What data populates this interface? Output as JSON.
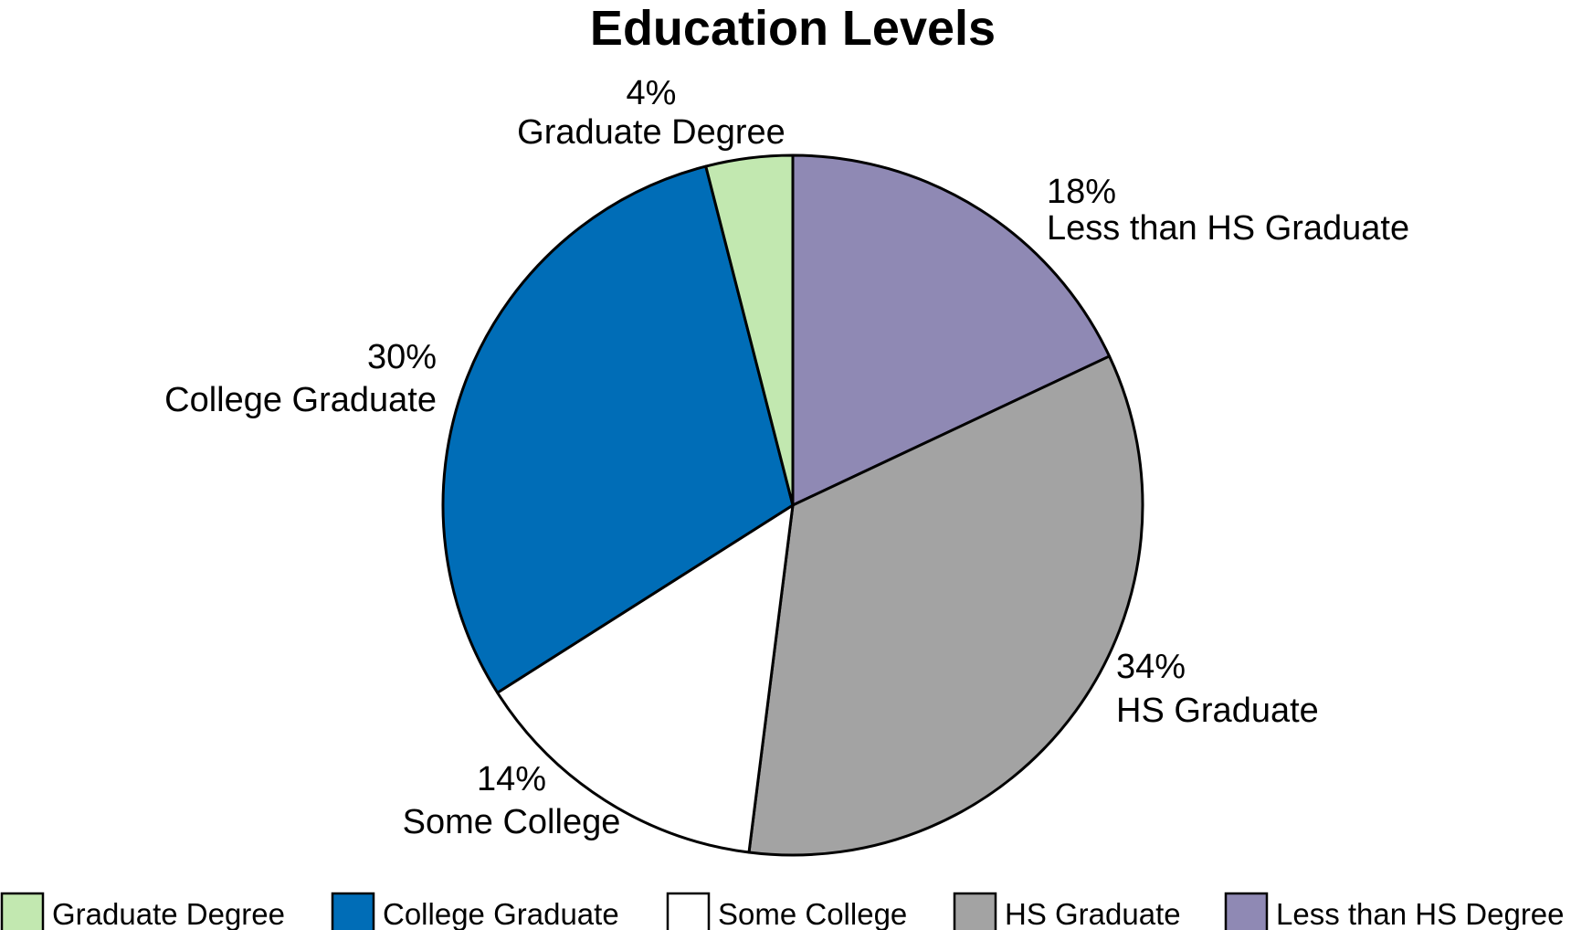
{
  "chart_data": {
    "type": "pie",
    "title": "Education Levels",
    "start": "12 o'clock",
    "direction": "clockwise",
    "slices": [
      {
        "category": "Less than HS Degree",
        "label": "Less than HS Graduate",
        "value": 18,
        "value_label": "18%",
        "color": "#8f89b4"
      },
      {
        "category": "HS Graduate",
        "label": "HS Graduate",
        "value": 34,
        "value_label": "34%",
        "color": "#a3a3a3"
      },
      {
        "category": "Some College",
        "label": "Some College",
        "value": 14,
        "value_label": "14%",
        "color": "#ffffff"
      },
      {
        "category": "College Graduate",
        "label": "College Graduate",
        "value": 30,
        "value_label": "30%",
        "color": "#006db7"
      },
      {
        "category": "Graduate Degree",
        "label": "Graduate Degree",
        "value": 4,
        "value_label": "4%",
        "color": "#c2e8b0"
      }
    ],
    "legend": {
      "placement": "bottom",
      "entries": [
        {
          "label": "Graduate Degree",
          "color": "#c2e8b0"
        },
        {
          "label": "College Graduate",
          "color": "#006db7"
        },
        {
          "label": "Some College",
          "color": "#ffffff"
        },
        {
          "label": "HS Graduate",
          "color": "#a3a3a3"
        },
        {
          "label": "Less than HS Degree",
          "color": "#8f89b4"
        }
      ]
    },
    "outline_color": "#000000"
  }
}
